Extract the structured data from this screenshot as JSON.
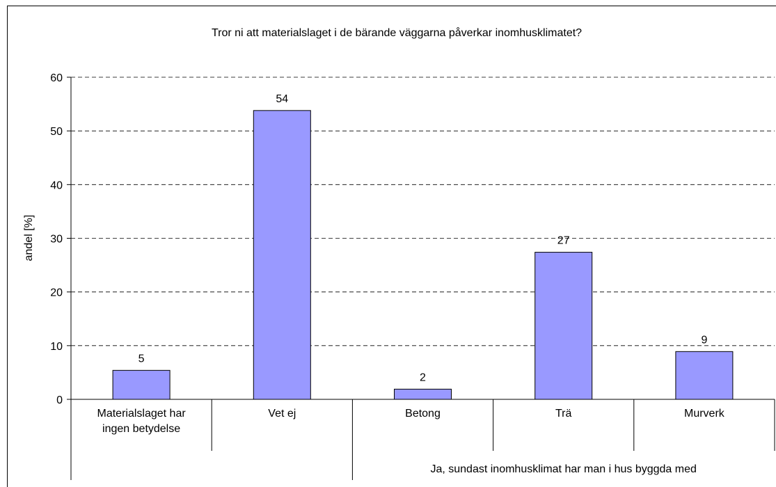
{
  "chart_data": {
    "type": "bar",
    "title": "Tror ni att materialslaget i de bärande väggarna påverkar inomhusklimatet?",
    "y_label": "andel [%]",
    "categories": [
      "Materialslaget har ingen betydelse",
      "Vet ej",
      "Betong",
      "Trä",
      "Murverk"
    ],
    "values": [
      5.4,
      53.8,
      1.9,
      27.4,
      8.9
    ],
    "value_labels": [
      "5",
      "54",
      "2",
      "27",
      "9"
    ],
    "x_group_label": "Ja, sundast inomhusklimat har man i hus byggda med",
    "color": "#9999ff",
    "ylim": [
      0,
      60
    ],
    "yticks": [
      0,
      10,
      20,
      30,
      40,
      50,
      60
    ],
    "grid": true
  }
}
